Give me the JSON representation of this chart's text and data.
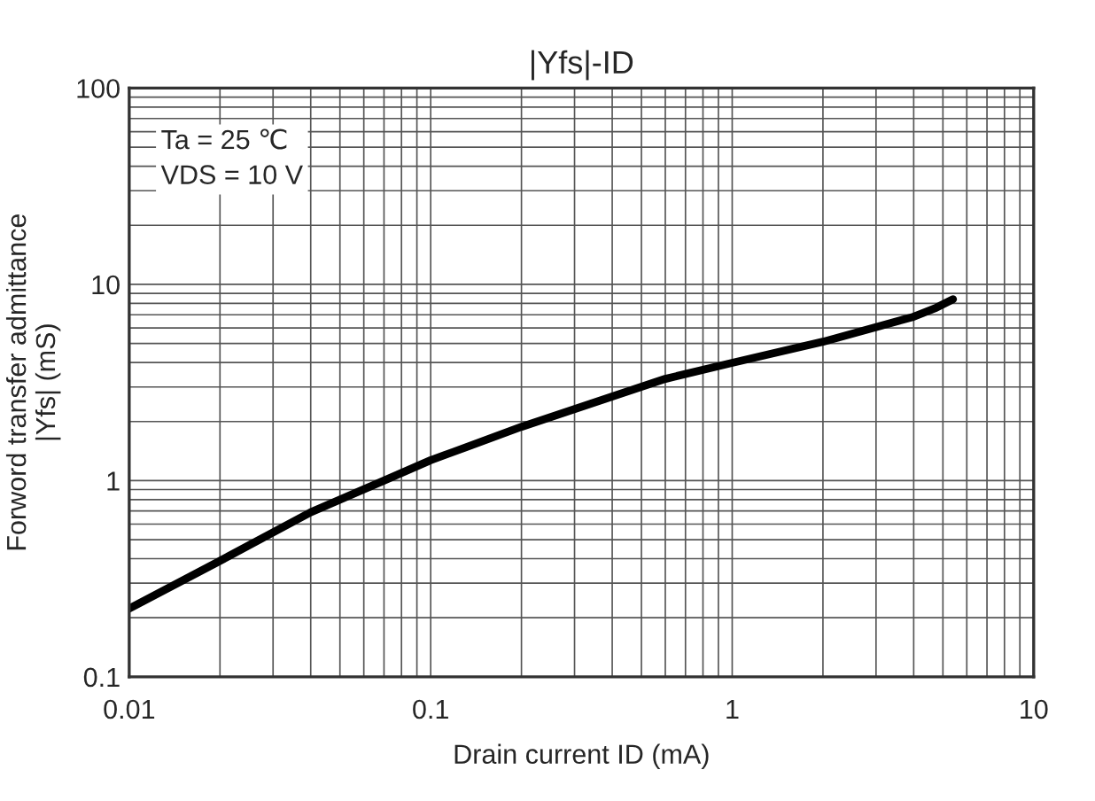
{
  "chart_data": {
    "type": "line",
    "title": "|Yfs|-ID",
    "xlabel": "Drain current ID (mA)",
    "ylabel": "Forword transfer admittance\n|Yfs| (mS)",
    "annotations": [
      "Ta = 25 ℃\nVDS = 10 V"
    ],
    "series": [
      {
        "color": "#000000",
        "x": [
          0.01,
          0.02,
          0.04,
          0.07,
          0.1,
          0.2,
          0.4,
          0.6,
          1,
          2,
          3.95,
          4.75,
          5.4
        ],
        "values": [
          0.223,
          0.39,
          0.69,
          1.0,
          1.27,
          1.88,
          2.68,
          3.3,
          3.98,
          5.1,
          6.8,
          7.6,
          8.4
        ]
      }
    ],
    "log": "xy",
    "xlim": [
      0.01,
      10
    ],
    "ylim": [
      0.1,
      100
    ],
    "xticks": [
      0.01,
      0.1,
      1,
      10
    ],
    "yticks": [
      0.1,
      1,
      10,
      100
    ],
    "grid": true,
    "legend": false,
    "marker": "none",
    "line_style": "solid"
  }
}
